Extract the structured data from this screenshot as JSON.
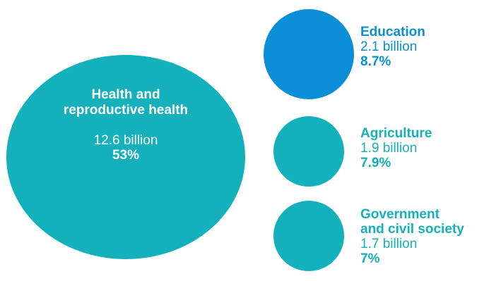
{
  "chart_data": {
    "type": "bubble",
    "title": "",
    "unit": "billion",
    "colors": {
      "teal": "#14b1bd",
      "blue": "#0a8fd6",
      "teal_text": "#14b1bd",
      "blue_text": "#0a8fd6"
    },
    "series": [
      {
        "name": "Health and reproductive health",
        "label_text": "Health and\nreproductive health",
        "value": 12.6,
        "amount_text": "12.6 billion",
        "percent": 53,
        "percent_text": "53%",
        "color": "#14b1bd"
      },
      {
        "name": "Education",
        "label_text": "Education",
        "value": 2.1,
        "amount_text": "2.1 billion",
        "percent": 8.7,
        "percent_text": "8.7%",
        "color": "#0a8fd6"
      },
      {
        "name": "Agriculture",
        "label_text": "Agriculture",
        "value": 1.9,
        "amount_text": "1.9 billion",
        "percent": 7.9,
        "percent_text": "7.9%",
        "color": "#14b1bd"
      },
      {
        "name": "Government and civil society",
        "label_text": "Government\nand civil society",
        "value": 1.7,
        "amount_text": "1.7 billion",
        "percent": 7,
        "percent_text": "7%",
        "color": "#14b1bd"
      }
    ]
  }
}
